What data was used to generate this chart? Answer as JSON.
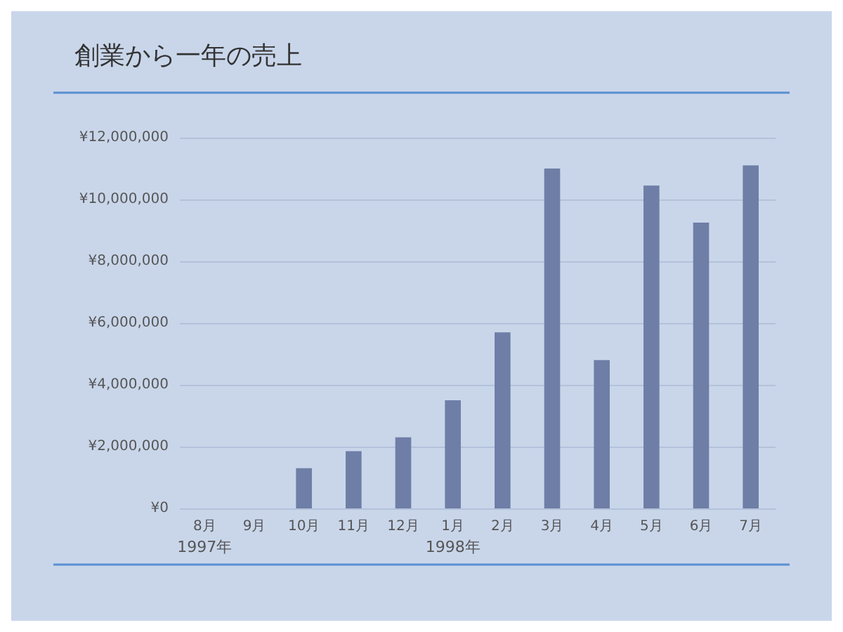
{
  "chart_data": {
    "type": "bar",
    "title": "創業から一年の売上",
    "categories": [
      "8月",
      "9月",
      "10月",
      "11月",
      "12月",
      "1月",
      "2月",
      "3月",
      "4月",
      "5月",
      "6月",
      "7月"
    ],
    "values": [
      0,
      0,
      1300000,
      1850000,
      2300000,
      3500000,
      5700000,
      11000000,
      4800000,
      10450000,
      9250000,
      11100000
    ],
    "color": "#6f7ea6",
    "ylim": [
      0,
      12000000
    ],
    "yticks": [
      {
        "value": 0,
        "label": "¥0"
      },
      {
        "value": 2000000,
        "label": "¥2,000,000"
      },
      {
        "value": 4000000,
        "label": "¥4,000,000"
      },
      {
        "value": 6000000,
        "label": "¥6,000,000"
      },
      {
        "value": 8000000,
        "label": "¥8,000,000"
      },
      {
        "value": 10000000,
        "label": "¥10,000,000"
      },
      {
        "value": 12000000,
        "label": "¥12,000,000"
      }
    ],
    "annotations": [
      "1997年",
      "1998年"
    ],
    "grid": "y"
  }
}
